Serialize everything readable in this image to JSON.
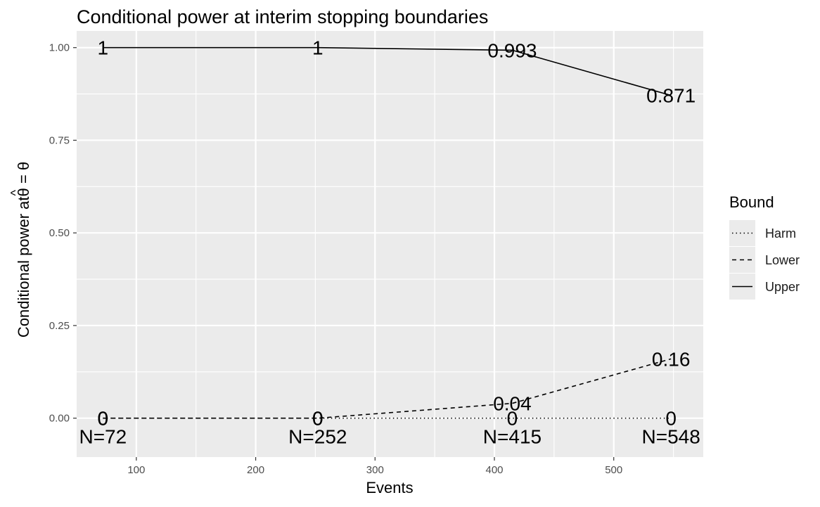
{
  "chart_data": {
    "type": "line",
    "title": "Conditional power at interim stopping boundaries",
    "xlabel": "Events",
    "ylabel_text": "Conditional power at",
    "ylabel_math": "θ = θ",
    "xlim": [
      50,
      575
    ],
    "ylim": [
      -0.105,
      1.045
    ],
    "x_ticks": [
      100,
      200,
      300,
      400,
      500
    ],
    "y_ticks": [
      0.0,
      0.25,
      0.5,
      0.75,
      1.0
    ],
    "y_tick_labels": [
      "0.00",
      "0.25",
      "0.50",
      "0.75",
      "1.00"
    ],
    "grid": true,
    "legend_position": "right",
    "legend_title": "Bound",
    "x": [
      72,
      252,
      415,
      548
    ],
    "sample_size_labels": [
      "N=72",
      "N=252",
      "N=415",
      "N=548"
    ],
    "series": [
      {
        "name": "Harm",
        "linetype": "dotted",
        "values": [
          0,
          0,
          0,
          0
        ],
        "point_labels": [
          "0",
          "0",
          "0",
          "0"
        ]
      },
      {
        "name": "Lower",
        "linetype": "dashed",
        "values": [
          0,
          0,
          0.04,
          0.16
        ],
        "point_labels": [
          "0",
          "0",
          "0.04",
          "0.16"
        ]
      },
      {
        "name": "Upper",
        "linetype": "solid",
        "values": [
          1,
          1,
          0.993,
          0.871
        ],
        "point_labels": [
          "1",
          "1",
          "0.993",
          "0.871"
        ]
      }
    ]
  }
}
